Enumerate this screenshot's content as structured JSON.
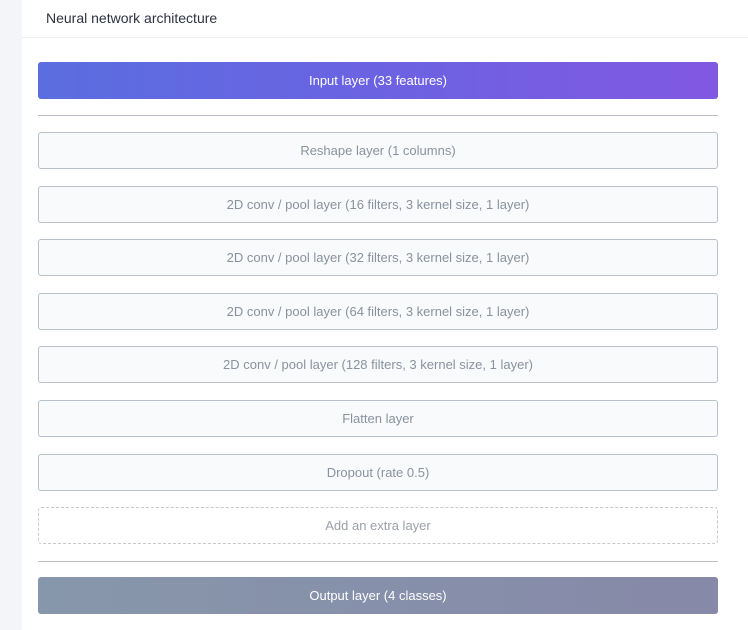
{
  "header": {
    "title": "Neural network architecture"
  },
  "input_layer": "Input layer (33 features)",
  "layers": [
    "Reshape layer (1 columns)",
    "2D conv / pool layer (16 filters, 3 kernel size, 1 layer)",
    "2D conv / pool layer (32 filters, 3 kernel size, 1 layer)",
    "2D conv / pool layer (64 filters, 3 kernel size, 1 layer)",
    "2D conv / pool layer (128 filters, 3 kernel size, 1 layer)",
    "Flatten layer",
    "Dropout (rate 0.5)"
  ],
  "add_layer": "Add an extra layer",
  "output_layer": "Output layer (4 classes)",
  "colors": {
    "input_start": "#5a6ee0",
    "input_end": "#8158e2",
    "output": "#8790a9"
  }
}
